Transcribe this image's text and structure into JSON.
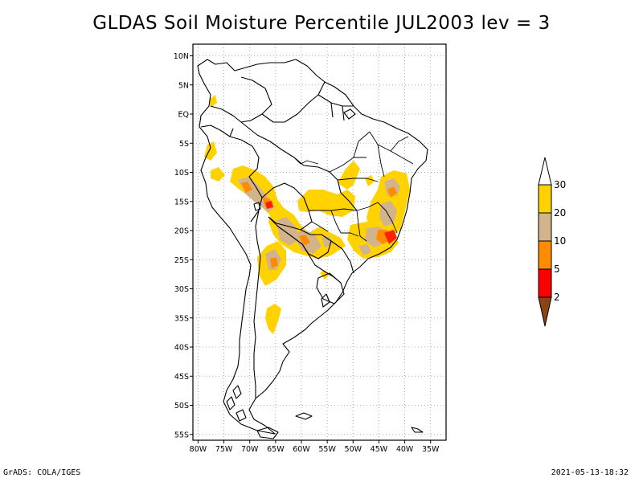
{
  "title": "GLDAS Soil Moisture Percentile JUL2003 lev = 3",
  "footer": {
    "left": "GrADS: COLA/IGES",
    "right": "2021-05-13-18:32"
  },
  "map": {
    "region": "South America",
    "lat_range": [
      -56,
      12
    ],
    "lon_range": [
      -81,
      -32
    ],
    "lat_ticks": [
      {
        "value": 10,
        "label": "10N"
      },
      {
        "value": 5,
        "label": "5N"
      },
      {
        "value": 0,
        "label": "EQ"
      },
      {
        "value": -5,
        "label": "5S"
      },
      {
        "value": -10,
        "label": "10S"
      },
      {
        "value": -15,
        "label": "15S"
      },
      {
        "value": -20,
        "label": "20S"
      },
      {
        "value": -25,
        "label": "25S"
      },
      {
        "value": -30,
        "label": "30S"
      },
      {
        "value": -35,
        "label": "35S"
      },
      {
        "value": -40,
        "label": "40S"
      },
      {
        "value": -45,
        "label": "45S"
      },
      {
        "value": -50,
        "label": "50S"
      },
      {
        "value": -55,
        "label": "55S"
      }
    ],
    "lon_ticks": [
      {
        "value": -80,
        "label": "80W"
      },
      {
        "value": -75,
        "label": "75W"
      },
      {
        "value": -70,
        "label": "70W"
      },
      {
        "value": -65,
        "label": "65W"
      },
      {
        "value": -60,
        "label": "60W"
      },
      {
        "value": -55,
        "label": "55W"
      },
      {
        "value": -50,
        "label": "50W"
      },
      {
        "value": -45,
        "label": "45W"
      },
      {
        "value": -40,
        "label": "40W"
      },
      {
        "value": -35,
        "label": "35W"
      }
    ],
    "grid": "dotted"
  },
  "legend": {
    "orientation": "vertical",
    "placement": "right",
    "bins": [
      {
        "color": "#ffffff",
        "label": "30"
      },
      {
        "color": "#ffd200",
        "label": "20"
      },
      {
        "color": "#d2b48c",
        "label": "10"
      },
      {
        "color": "#ff8c00",
        "label": "5"
      },
      {
        "color": "#ff0000",
        "label": "2"
      },
      {
        "color": "#8b4513",
        "label": ""
      }
    ]
  }
}
